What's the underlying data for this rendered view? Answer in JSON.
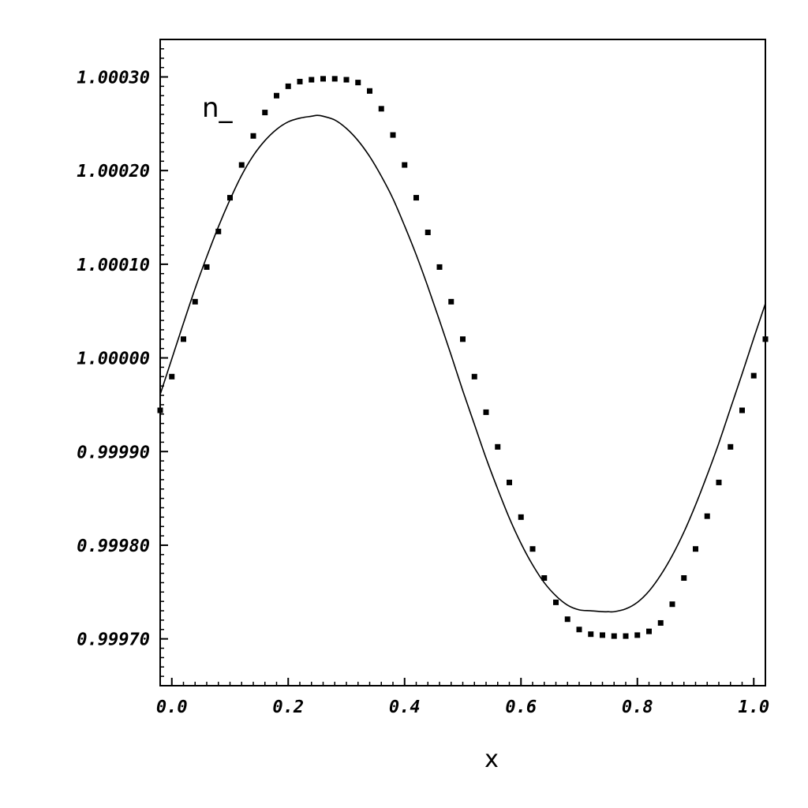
{
  "chart_data": {
    "type": "line",
    "xlabel": "x",
    "ylabel": "",
    "xlim": [
      -0.02,
      1.02
    ],
    "ylim": [
      0.99965,
      1.00034
    ],
    "grid": false,
    "x_ticks": [
      {
        "value": 0.0,
        "label": "0.0"
      },
      {
        "value": 0.2,
        "label": "0.2"
      },
      {
        "value": 0.4,
        "label": "0.4"
      },
      {
        "value": 0.6,
        "label": "0.6"
      },
      {
        "value": 0.8,
        "label": "0.8"
      },
      {
        "value": 1.0,
        "label": "1.0"
      }
    ],
    "y_ticks": [
      {
        "value": 0.9997,
        "label": "0.99970"
      },
      {
        "value": 0.9998,
        "label": "0.99980"
      },
      {
        "value": 0.9999,
        "label": "0.99990"
      },
      {
        "value": 1.0,
        "label": "1.00000"
      },
      {
        "value": 1.0001,
        "label": "1.00010"
      },
      {
        "value": 1.0002,
        "label": "1.00020"
      },
      {
        "value": 1.0003,
        "label": "1.00030"
      }
    ],
    "annotation": "n_",
    "series": [
      {
        "style": "solid-line",
        "color": "#000000",
        "x": [
          -0.02,
          0.0,
          0.02,
          0.04,
          0.06,
          0.08,
          0.1,
          0.12,
          0.14,
          0.16,
          0.18,
          0.2,
          0.22,
          0.24,
          0.25,
          0.26,
          0.28,
          0.3,
          0.32,
          0.34,
          0.36,
          0.38,
          0.4,
          0.42,
          0.44,
          0.46,
          0.48,
          0.5,
          0.52,
          0.54,
          0.56,
          0.58,
          0.6,
          0.62,
          0.64,
          0.66,
          0.68,
          0.7,
          0.72,
          0.74,
          0.75,
          0.76,
          0.78,
          0.8,
          0.82,
          0.84,
          0.86,
          0.88,
          0.9,
          0.92,
          0.94,
          0.96,
          0.98,
          1.0,
          1.02
        ],
        "y": [
          0.999961,
          0.999999,
          1.000037,
          1.000074,
          1.000108,
          1.00014,
          1.000169,
          1.000195,
          1.000216,
          1.000232,
          1.000244,
          1.000252,
          1.000256,
          1.000258,
          1.000259,
          1.000258,
          1.000254,
          1.000245,
          1.000232,
          1.000215,
          1.000194,
          1.00017,
          1.000141,
          1.00011,
          1.000076,
          1.00004,
          1.000003,
          0.999965,
          0.999929,
          0.999893,
          0.99986,
          0.999829,
          0.999802,
          0.999779,
          0.99976,
          0.999746,
          0.999736,
          0.999731,
          0.99973,
          0.999729,
          0.999729,
          0.999729,
          0.999732,
          0.999739,
          0.999751,
          0.999768,
          0.999789,
          0.999814,
          0.999843,
          0.999875,
          0.999909,
          0.999946,
          0.999983,
          1.000021,
          1.000058
        ]
      },
      {
        "style": "square-points",
        "color": "#000000",
        "x": [
          -0.02,
          0.0,
          0.02,
          0.04,
          0.06,
          0.08,
          0.1,
          0.12,
          0.14,
          0.16,
          0.18,
          0.2,
          0.22,
          0.24,
          0.26,
          0.28,
          0.3,
          0.32,
          0.34,
          0.36,
          0.38,
          0.4,
          0.42,
          0.44,
          0.46,
          0.48,
          0.5,
          0.52,
          0.54,
          0.56,
          0.58,
          0.6,
          0.62,
          0.64,
          0.66,
          0.68,
          0.7,
          0.72,
          0.74,
          0.76,
          0.78,
          0.8,
          0.82,
          0.84,
          0.86,
          0.88,
          0.9,
          0.92,
          0.94,
          0.96,
          0.98,
          1.0,
          1.02
        ],
        "y": [
          0.999944,
          0.99998,
          1.00002,
          1.00006,
          1.000097,
          1.000135,
          1.000171,
          1.000206,
          1.000237,
          1.000262,
          1.00028,
          1.00029,
          1.000295,
          1.000297,
          1.000298,
          1.000298,
          1.000297,
          1.000294,
          1.000285,
          1.000266,
          1.000238,
          1.000206,
          1.000171,
          1.000134,
          1.000097,
          1.00006,
          1.00002,
          0.99998,
          0.999942,
          0.999905,
          0.999867,
          0.99983,
          0.999796,
          0.999765,
          0.999739,
          0.999721,
          0.99971,
          0.999705,
          0.999704,
          0.999703,
          0.999703,
          0.999704,
          0.999708,
          0.999717,
          0.999737,
          0.999765,
          0.999796,
          0.999831,
          0.999867,
          0.999905,
          0.999944,
          0.999981,
          1.00002
        ]
      }
    ]
  }
}
